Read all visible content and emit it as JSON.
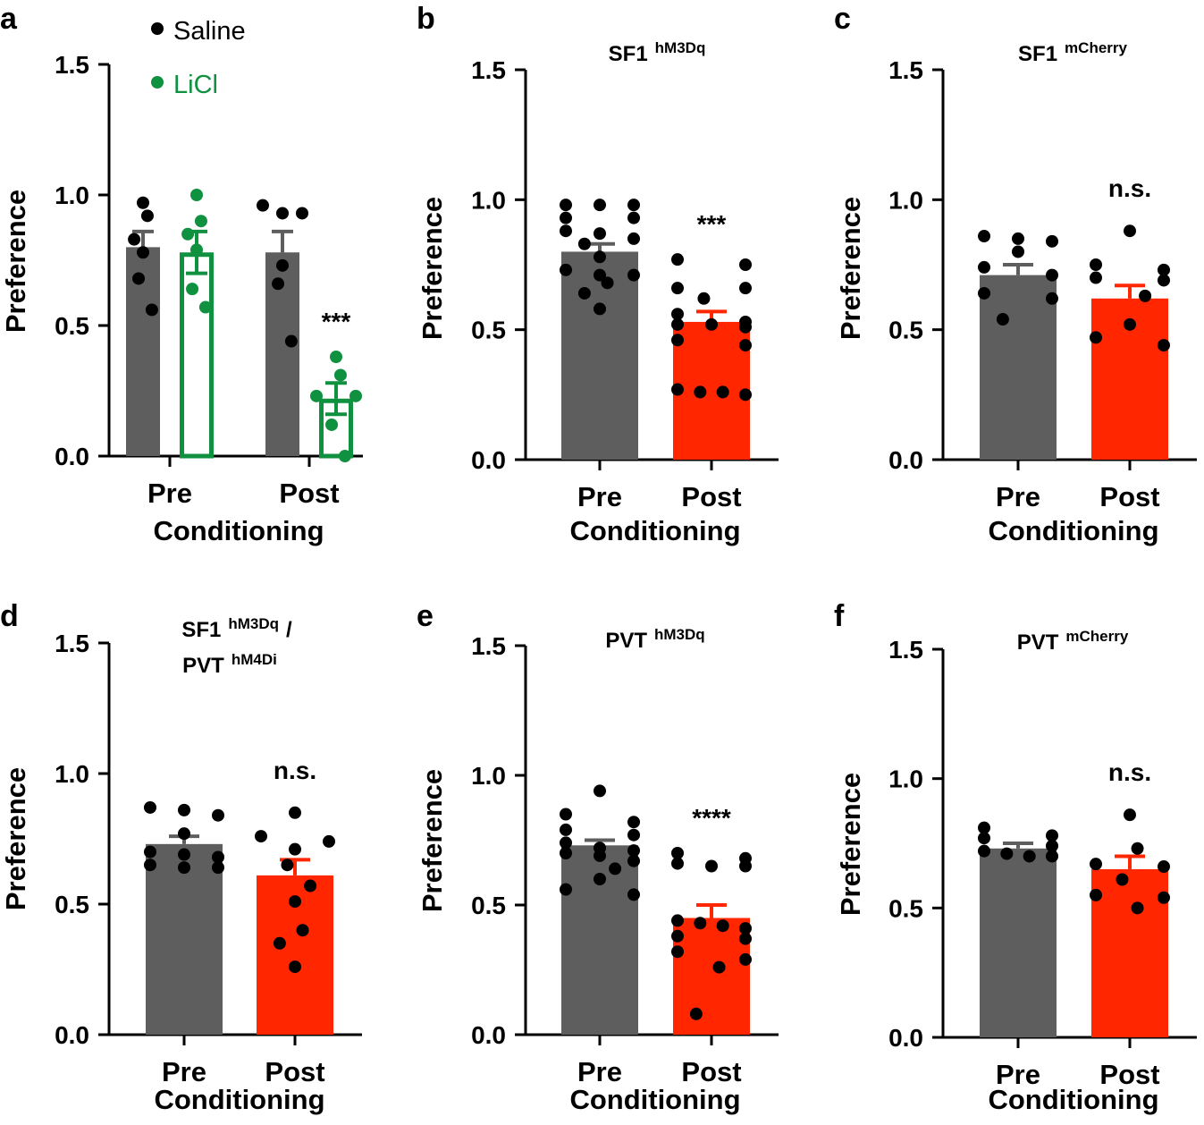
{
  "colors": {
    "saline_bar": "#5e5e5e",
    "post_bar": "#ff2600",
    "licl": "#0f9140",
    "dot": "#000000",
    "axis": "#000000"
  },
  "chart_data": [
    {
      "panel": "a",
      "type": "bar",
      "title": "",
      "ylabel": "Preference",
      "xlabel": "Conditioning",
      "ylim": [
        0,
        1.5
      ],
      "yticks": [
        "0.0",
        "0.5",
        "1.0",
        "1.5"
      ],
      "categories": [
        "Pre",
        "Post"
      ],
      "legend": {
        "placement": "top-left",
        "entries": [
          "Saline",
          "LiCl"
        ]
      },
      "series": [
        {
          "name": "Saline",
          "values": [
            0.8,
            0.78
          ],
          "sem": [
            0.06,
            0.08
          ],
          "points": [
            [
              0.97,
              0.92,
              0.83,
              0.78,
              0.68,
              0.56
            ],
            [
              0.96,
              0.93,
              0.93,
              0.73,
              0.66,
              0.44
            ]
          ]
        },
        {
          "name": "LiCl",
          "values": [
            0.78,
            0.22
          ],
          "sem": [
            0.08,
            0.06
          ],
          "points": [
            [
              1.0,
              0.9,
              0.85,
              0.79,
              0.64,
              0.57
            ],
            [
              0.38,
              0.31,
              0.23,
              0.23,
              0.12,
              0.0
            ]
          ]
        }
      ],
      "annotations": [
        "",
        "***"
      ]
    },
    {
      "panel": "b",
      "type": "bar",
      "title": "SF1",
      "title_sup": "hM3Dq",
      "ylabel": "Preference",
      "xlabel": "Conditioning",
      "ylim": [
        0,
        1.5
      ],
      "yticks": [
        "0.0",
        "0.5",
        "1.0",
        "1.5"
      ],
      "categories": [
        "Pre",
        "Post"
      ],
      "series": [
        {
          "name": "",
          "values": [
            0.8,
            0.53
          ],
          "sem": [
            0.03,
            0.04
          ],
          "points": [
            [
              0.98,
              0.98,
              0.98,
              0.93,
              0.93,
              0.88,
              0.87,
              0.85,
              0.83,
              0.78,
              0.73,
              0.71,
              0.71,
              0.68,
              0.64,
              0.58
            ],
            [
              0.77,
              0.75,
              0.66,
              0.66,
              0.62,
              0.56,
              0.53,
              0.52,
              0.52,
              0.51,
              0.46,
              0.44,
              0.27,
              0.26,
              0.26,
              0.25
            ]
          ]
        }
      ],
      "annotations": [
        "",
        "***"
      ]
    },
    {
      "panel": "c",
      "type": "bar",
      "title": "SF1",
      "title_sup": "mCherry",
      "ylabel": "Preference",
      "xlabel": "Conditioning",
      "ylim": [
        0,
        1.5
      ],
      "yticks": [
        "0.0",
        "0.5",
        "1.0",
        "1.5"
      ],
      "categories": [
        "Pre",
        "Post"
      ],
      "series": [
        {
          "name": "",
          "values": [
            0.71,
            0.62
          ],
          "sem": [
            0.04,
            0.05
          ],
          "points": [
            [
              0.86,
              0.85,
              0.84,
              0.8,
              0.74,
              0.71,
              0.64,
              0.62,
              0.54
            ],
            [
              0.88,
              0.75,
              0.73,
              0.7,
              0.69,
              0.63,
              0.52,
              0.47,
              0.44
            ]
          ]
        }
      ],
      "annotations": [
        "",
        "n.s."
      ]
    },
    {
      "panel": "d",
      "type": "bar",
      "title": "SF1",
      "title_sup": "hM3Dq",
      "title_sep": "/",
      "title2": "PVT",
      "title2_sup": "hM4Di",
      "ylabel": "Preference",
      "xlabel": "Conditioning",
      "ylim": [
        0,
        1.5
      ],
      "yticks": [
        "0.0",
        "0.5",
        "1.0",
        "1.5"
      ],
      "categories": [
        "Pre",
        "Post"
      ],
      "series": [
        {
          "name": "",
          "values": [
            0.73,
            0.61
          ],
          "sem": [
            0.03,
            0.06
          ],
          "points": [
            [
              0.87,
              0.86,
              0.84,
              0.77,
              0.7,
              0.69,
              0.68,
              0.65,
              0.64,
              0.64
            ],
            [
              0.85,
              0.76,
              0.74,
              0.71,
              0.65,
              0.57,
              0.51,
              0.4,
              0.35,
              0.26
            ]
          ]
        }
      ],
      "annotations": [
        "",
        "n.s."
      ]
    },
    {
      "panel": "e",
      "type": "bar",
      "title": "PVT",
      "title_sup": "hM3Dq",
      "ylabel": "Preference",
      "xlabel": "Conditioning",
      "ylim": [
        0,
        1.5
      ],
      "yticks": [
        "0.0",
        "0.5",
        "1.0",
        "1.5"
      ],
      "categories": [
        "Pre",
        "Post"
      ],
      "series": [
        {
          "name": "",
          "values": [
            0.73,
            0.45
          ],
          "sem": [
            0.02,
            0.05
          ],
          "points": [
            [
              0.94,
              0.85,
              0.82,
              0.79,
              0.77,
              0.74,
              0.72,
              0.71,
              0.7,
              0.69,
              0.67,
              0.64,
              0.6,
              0.56,
              0.54
            ],
            [
              0.7,
              0.68,
              0.66,
              0.65,
              0.65,
              0.44,
              0.43,
              0.42,
              0.41,
              0.38,
              0.37,
              0.32,
              0.29,
              0.26,
              0.08
            ]
          ]
        }
      ],
      "annotations": [
        "",
        "****"
      ]
    },
    {
      "panel": "f",
      "type": "bar",
      "title": "PVT",
      "title_sup": "mCherry",
      "ylabel": "Preference",
      "xlabel": "Conditioning",
      "ylim": [
        0,
        1.5
      ],
      "yticks": [
        "0.0",
        "0.5",
        "1.0",
        "1.5"
      ],
      "categories": [
        "Pre",
        "Post"
      ],
      "series": [
        {
          "name": "",
          "values": [
            0.73,
            0.65
          ],
          "sem": [
            0.02,
            0.05
          ],
          "points": [
            [
              0.81,
              0.78,
              0.77,
              0.74,
              0.72,
              0.71,
              0.7,
              0.7
            ],
            [
              0.86,
              0.73,
              0.67,
              0.66,
              0.61,
              0.55,
              0.54,
              0.5
            ]
          ]
        }
      ],
      "annotations": [
        "",
        "n.s."
      ]
    }
  ]
}
